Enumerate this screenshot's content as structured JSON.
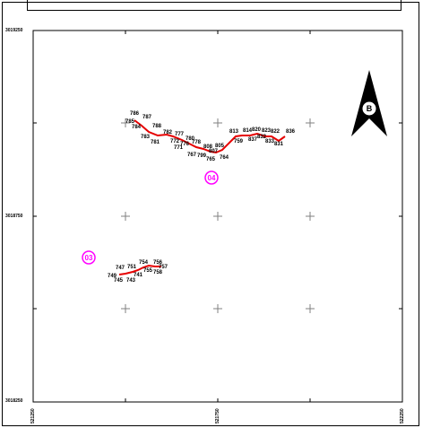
{
  "map": {
    "y_top_label": "3019250",
    "y_mid_label": "3018750",
    "y_bottom_label": "3018250",
    "x_left_label": "521250",
    "x_mid_label": "521750",
    "x_right_label": "522250",
    "north_letter": "B",
    "route_color": "#e60000",
    "group_color": "#ff00ff",
    "grid_color": "#808080"
  },
  "groups": [
    {
      "label": "04"
    },
    {
      "label": "03"
    }
  ],
  "points_upper": [
    {
      "label": "786"
    },
    {
      "label": "787"
    },
    {
      "label": "785"
    },
    {
      "label": "784"
    },
    {
      "label": "788"
    },
    {
      "label": "782"
    },
    {
      "label": "781"
    },
    {
      "label": "783"
    },
    {
      "label": "777"
    },
    {
      "label": "772"
    },
    {
      "label": "780"
    },
    {
      "label": "771"
    },
    {
      "label": "776"
    },
    {
      "label": "778"
    },
    {
      "label": "808"
    },
    {
      "label": "805"
    },
    {
      "label": "807"
    },
    {
      "label": "767"
    },
    {
      "label": "799"
    },
    {
      "label": "765"
    },
    {
      "label": "764"
    },
    {
      "label": "813"
    },
    {
      "label": "814"
    },
    {
      "label": "820"
    },
    {
      "label": "823"
    },
    {
      "label": "822"
    },
    {
      "label": "836"
    },
    {
      "label": "759"
    },
    {
      "label": "837"
    },
    {
      "label": "831"
    },
    {
      "label": "833"
    },
    {
      "label": "832"
    }
  ],
  "points_lower": [
    {
      "label": "747"
    },
    {
      "label": "751"
    },
    {
      "label": "754"
    },
    {
      "label": "756"
    },
    {
      "label": "749"
    },
    {
      "label": "741"
    },
    {
      "label": "757"
    },
    {
      "label": "758"
    },
    {
      "label": "745"
    },
    {
      "label": "743"
    },
    {
      "label": "755"
    }
  ]
}
